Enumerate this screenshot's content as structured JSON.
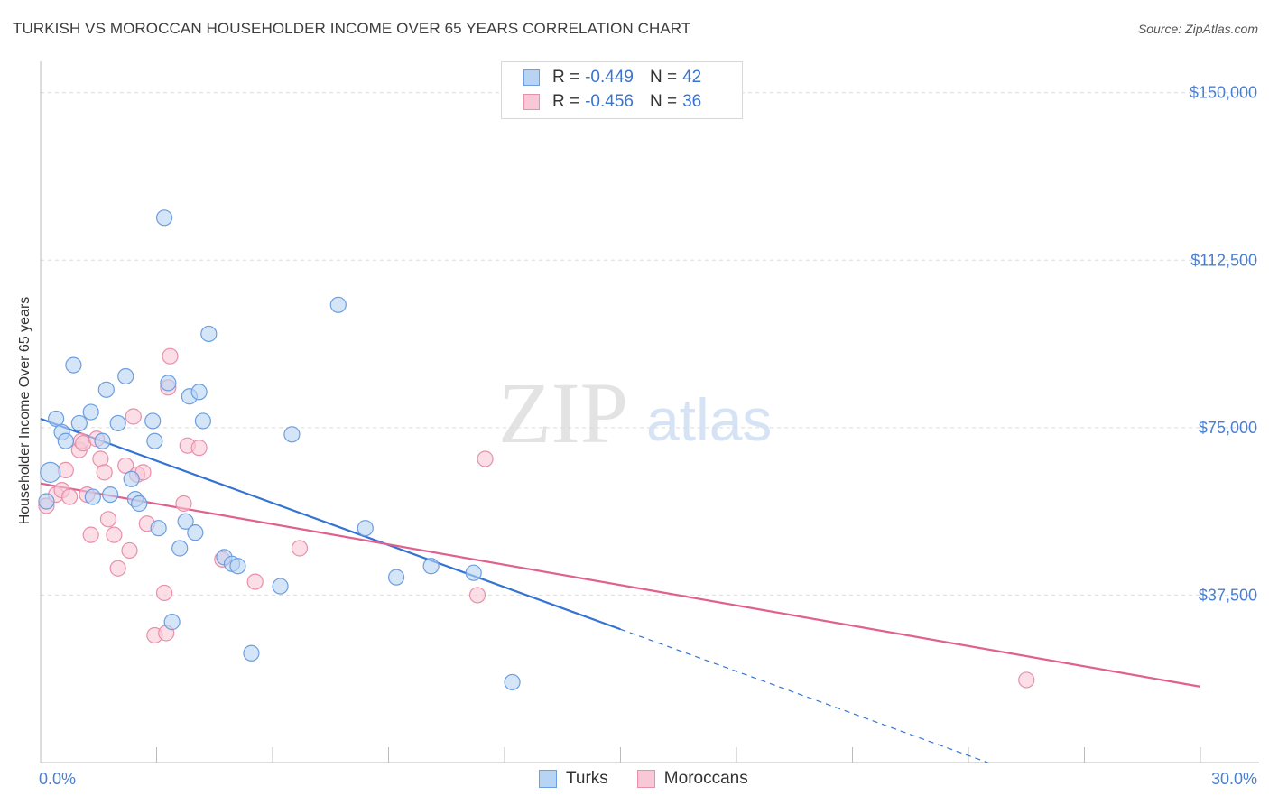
{
  "title": "TURKISH VS MOROCCAN HOUSEHOLDER INCOME OVER 65 YEARS CORRELATION CHART",
  "source": "Source: ZipAtlas.com",
  "watermark": {
    "zip": "ZIP",
    "atlas": "atlas"
  },
  "colors": {
    "turks_fill": "#b9d3f3",
    "turks_stroke": "#6c9ee0",
    "turks_line": "#3473d4",
    "moroccans_fill": "#f8c8d6",
    "moroccans_stroke": "#e890ab",
    "moroccans_line": "#e0608e",
    "tick_text": "#4a7fd0",
    "grid": "#dcdcdc"
  },
  "legend": {
    "r_label": "R =",
    "n_label": "N =",
    "turks": {
      "r": "-0.449",
      "n": "42"
    },
    "moroccans": {
      "r": "-0.456",
      "n": "36"
    }
  },
  "chart_data": {
    "type": "scatter",
    "title": "TURKISH VS MOROCCAN HOUSEHOLDER INCOME OVER 65 YEARS CORRELATION CHART",
    "xlabel": "",
    "ylabel": "Householder Income Over 65 years",
    "xlim": [
      0,
      30
    ],
    "ylim": [
      0,
      155000
    ],
    "x_tick_labels": [
      "0.0%",
      "30.0%"
    ],
    "y_ticks": [
      37500,
      75000,
      112500,
      150000
    ],
    "y_tick_labels": [
      "$37,500",
      "$75,000",
      "$112,500",
      "$150,000"
    ],
    "grid": true,
    "legend_position": "top-center",
    "series": [
      {
        "name": "Turks",
        "r": -0.449,
        "n": 42,
        "points": [
          [
            0.25,
            65000
          ],
          [
            0.4,
            77000
          ],
          [
            0.55,
            74000
          ],
          [
            0.65,
            72000
          ],
          [
            0.85,
            89000
          ],
          [
            1.0,
            76000
          ],
          [
            1.3,
            78500
          ],
          [
            1.35,
            59500
          ],
          [
            1.7,
            83500
          ],
          [
            1.8,
            60000
          ],
          [
            2.0,
            76000
          ],
          [
            2.2,
            86500
          ],
          [
            2.35,
            63500
          ],
          [
            2.45,
            59000
          ],
          [
            2.55,
            58000
          ],
          [
            2.9,
            76500
          ],
          [
            2.95,
            72000
          ],
          [
            3.05,
            52500
          ],
          [
            3.2,
            122000
          ],
          [
            3.3,
            85000
          ],
          [
            3.6,
            48000
          ],
          [
            3.75,
            54000
          ],
          [
            3.85,
            82000
          ],
          [
            4.0,
            51500
          ],
          [
            4.1,
            83000
          ],
          [
            4.2,
            76500
          ],
          [
            4.35,
            96000
          ],
          [
            4.75,
            46000
          ],
          [
            4.95,
            44500
          ],
          [
            5.1,
            44000
          ],
          [
            5.45,
            24500
          ],
          [
            6.2,
            39500
          ],
          [
            6.5,
            73500
          ],
          [
            7.7,
            102500
          ],
          [
            8.4,
            52500
          ],
          [
            9.2,
            41500
          ],
          [
            10.1,
            44000
          ],
          [
            11.2,
            42500
          ],
          [
            12.2,
            18000
          ],
          [
            3.4,
            31500
          ],
          [
            0.15,
            58500
          ],
          [
            1.6,
            72000
          ]
        ],
        "trend": {
          "x0": 0,
          "y0": 77000,
          "x_solid_end": 15,
          "x_dash_end": 24.5
        }
      },
      {
        "name": "Moroccans",
        "r": -0.456,
        "n": 36,
        "points": [
          [
            0.15,
            57500
          ],
          [
            0.4,
            60000
          ],
          [
            0.55,
            61000
          ],
          [
            0.65,
            65500
          ],
          [
            0.75,
            59500
          ],
          [
            1.0,
            70000
          ],
          [
            1.05,
            72000
          ],
          [
            1.1,
            71500
          ],
          [
            1.2,
            60000
          ],
          [
            1.3,
            51000
          ],
          [
            1.45,
            72500
          ],
          [
            1.55,
            68000
          ],
          [
            1.65,
            65000
          ],
          [
            1.75,
            54500
          ],
          [
            1.9,
            51000
          ],
          [
            2.0,
            43500
          ],
          [
            2.2,
            66500
          ],
          [
            2.3,
            47500
          ],
          [
            2.4,
            77500
          ],
          [
            2.5,
            64500
          ],
          [
            2.65,
            65000
          ],
          [
            2.75,
            53500
          ],
          [
            2.95,
            28500
          ],
          [
            3.2,
            38000
          ],
          [
            3.25,
            29000
          ],
          [
            3.3,
            84000
          ],
          [
            3.35,
            91000
          ],
          [
            3.7,
            58000
          ],
          [
            3.8,
            71000
          ],
          [
            4.1,
            70500
          ],
          [
            4.7,
            45500
          ],
          [
            5.55,
            40500
          ],
          [
            6.7,
            48000
          ],
          [
            11.3,
            37500
          ],
          [
            11.5,
            68000
          ],
          [
            25.5,
            18500
          ]
        ],
        "trend": {
          "x0": 0,
          "y0": 62500,
          "x_end": 30,
          "y_end": 17000
        }
      }
    ]
  },
  "bottom_legend": [
    "Turks",
    "Moroccans"
  ]
}
